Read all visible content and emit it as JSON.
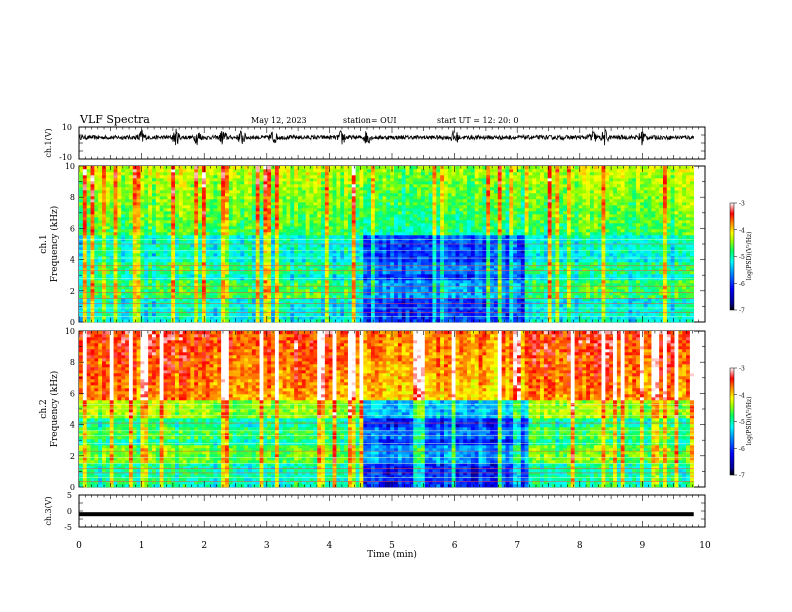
{
  "header": {
    "title": "VLF Spectra",
    "date": "May 12, 2023",
    "station": "station= OUI",
    "start": "start  UT  =   12: 20: 0"
  },
  "chart_data": [
    {
      "type": "line",
      "panel": "ch1-waveform",
      "ylabel": "ch.1(V)",
      "ylim": [
        -10,
        10
      ],
      "yticks": [
        "10",
        "-10"
      ],
      "description_note": "",
      "baseline": 3.5,
      "burst_times_min": [
        1.0,
        1.55,
        1.9,
        2.3,
        2.6,
        3.1,
        4.2,
        4.6,
        6.0,
        8.2,
        8.4,
        9.0
      ],
      "xlim": [
        0,
        10
      ]
    },
    {
      "type": "heatmap",
      "panel": "ch1-spectrogram",
      "ylabel": "ch.1",
      "ylabel2": "Frequency  (kHz)",
      "xlim": [
        0,
        10
      ],
      "data_xmax": 9.82,
      "ylim": [
        0,
        10
      ],
      "yticks": [
        "0",
        "2",
        "4",
        "6",
        "8",
        "10"
      ],
      "quiet_interval_min": [
        4.55,
        7.2
      ],
      "colorbar": {
        "label": "log(PSD)(V²/Hz)",
        "range": [
          -7,
          -3
        ],
        "ticks": [
          "-3",
          "-4",
          "-5",
          "-6",
          "-7"
        ]
      }
    },
    {
      "type": "heatmap",
      "panel": "ch2-spectrogram",
      "ylabel": "ch.2",
      "ylabel2": "Frequency  (kHz)",
      "xlim": [
        0,
        10
      ],
      "data_xmax": 9.82,
      "ylim": [
        0,
        10
      ],
      "yticks": [
        "0",
        "2",
        "4",
        "6",
        "8",
        "10"
      ],
      "quiet_interval_min": [
        4.55,
        7.2
      ],
      "colorbar": {
        "label": "log(PSD)(V²/Hz)",
        "range": [
          -7,
          -3
        ],
        "ticks": [
          "-3",
          "-4",
          "-5",
          "-6",
          "-7"
        ]
      }
    },
    {
      "type": "line",
      "panel": "ch3-waveform",
      "ylabel": "ch.3(V)",
      "ylim": [
        -5,
        5
      ],
      "yticks": [
        "5",
        "0",
        "-5"
      ],
      "level": -1.0,
      "xlim": [
        0,
        10
      ],
      "xlabel": "Time  (min)",
      "xticks": [
        "0",
        "1",
        "2",
        "3",
        "4",
        "5",
        "6",
        "7",
        "8",
        "9",
        "10"
      ]
    }
  ],
  "colors": {
    "colormap": [
      "#000080",
      "#0000ff",
      "#0080ff",
      "#00ffff",
      "#00ff80",
      "#80ff00",
      "#ffff00",
      "#ff8000",
      "#ff0000",
      "#ffffff"
    ],
    "trace": "#000000"
  }
}
